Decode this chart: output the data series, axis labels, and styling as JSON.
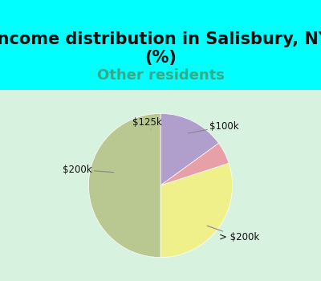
{
  "title": "Income distribution in Salisbury, NY\n(%)",
  "subtitle": "Other residents",
  "title_color": "#111111",
  "subtitle_color": "#33aa88",
  "title_fontsize": 15,
  "subtitle_fontsize": 13,
  "slices": [
    {
      "label": "$100k",
      "value": 15.0,
      "color": "#b09fcc"
    },
    {
      "label": "$125k",
      "value": 5.0,
      "color": "#e8a0a8"
    },
    {
      "label": "$200k",
      "value": 30.0,
      "color": "#f0f08a"
    },
    {
      "label": "> $200k",
      "value": 50.0,
      "color": "#b8c890"
    }
  ],
  "bg_top_color": "#00FFFF",
  "bg_chart_color_outer": "#b8ddb8",
  "bg_chart_color_inner": "#ffffff",
  "label_fontsize": 8.5,
  "label_color": "#111111"
}
